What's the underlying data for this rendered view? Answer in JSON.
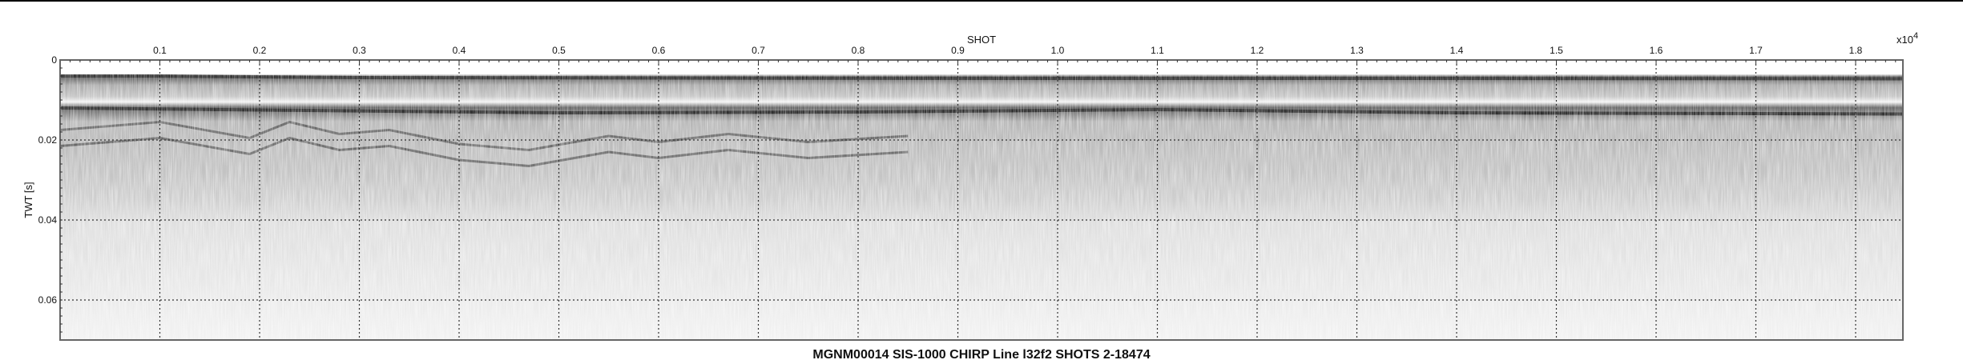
{
  "chart_data": {
    "type": "heatmap",
    "title": "MGNM00014 SIS-1000 CHIRP Line l32f2 SHOTS 2-18474",
    "xlabel": "SHOT",
    "x_exponent_label": "x10",
    "x_exponent_power": "4",
    "ylabel": "TWT [s]",
    "x_axis_position": "top",
    "xlim": [
      0,
      18474
    ],
    "ylim": [
      0,
      0.07
    ],
    "y_inverted": true,
    "grid": true,
    "grid_style": "dotted",
    "colormap": "grayscale",
    "x_ticks": [
      1000,
      2000,
      3000,
      4000,
      5000,
      6000,
      7000,
      8000,
      9000,
      10000,
      11000,
      12000,
      13000,
      14000,
      15000,
      16000,
      17000,
      18000
    ],
    "x_tick_labels": [
      "0.1",
      "0.2",
      "0.3",
      "0.4",
      "0.5",
      "0.6",
      "0.7",
      "0.8",
      "0.9",
      "1.0",
      "1.1",
      "1.2",
      "1.3",
      "1.4",
      "1.5",
      "1.6",
      "1.7",
      "1.8"
    ],
    "y_ticks": [
      0,
      0.02,
      0.04,
      0.06
    ],
    "y_tick_labels": [
      "0",
      "0.02",
      "0.04",
      "0.06"
    ],
    "horizons": [
      {
        "x": [
          0,
          1000,
          3000,
          6000,
          10000,
          14000,
          18474
        ],
        "y": [
          0.004,
          0.004,
          0.0044,
          0.0045,
          0.0046,
          0.0046,
          0.0047
        ]
      },
      {
        "x": [
          0,
          2000,
          5000,
          8000,
          11000,
          14000,
          18474
        ],
        "y": [
          0.012,
          0.0125,
          0.0132,
          0.013,
          0.0124,
          0.0132,
          0.0135
        ]
      },
      {
        "x": [
          0,
          1000,
          1900,
          2300,
          2800,
          3300,
          4000,
          4700,
          5500,
          6000,
          6700,
          7500,
          8500
        ],
        "y": [
          0.0175,
          0.0155,
          0.0195,
          0.0155,
          0.0185,
          0.0175,
          0.021,
          0.0225,
          0.019,
          0.0205,
          0.0185,
          0.0205,
          0.019
        ]
      },
      {
        "x": [
          0,
          1000,
          1900,
          2300,
          2800,
          3300,
          4000,
          4700,
          5500,
          6000,
          6700,
          7500,
          8500
        ],
        "y": [
          0.0215,
          0.0195,
          0.0235,
          0.0195,
          0.0225,
          0.0215,
          0.025,
          0.0265,
          0.023,
          0.0245,
          0.0225,
          0.0245,
          0.023
        ]
      }
    ]
  }
}
